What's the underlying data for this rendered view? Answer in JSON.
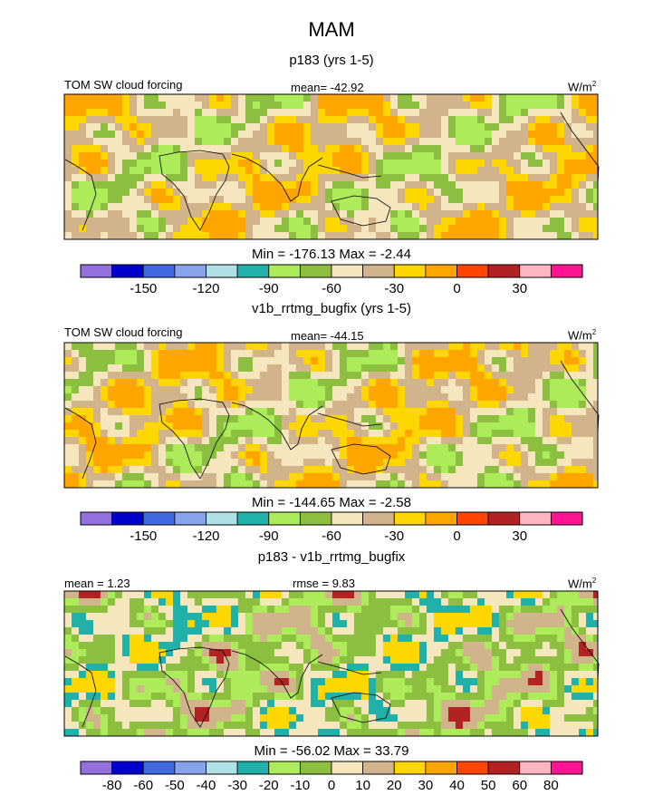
{
  "title": "MAM",
  "chart_data": [
    {
      "type": "heatmap",
      "subtitle": "p183 (yrs 1-5)",
      "left_label": "TOM SW cloud forcing",
      "center_label": "mean= -42.92",
      "units_base": "W/m",
      "units_exp": "2",
      "stats": "Min = -176.13 Max =  -2.44",
      "colorbar_ticks": [
        "-150",
        "-120",
        "-90",
        "-60",
        "-30",
        "0",
        "30"
      ],
      "colorbar_colors": [
        "#9370DB",
        "#0000CD",
        "#4169E1",
        "#87A3EB",
        "#AEE0E6",
        "#20B2AA",
        "#ADEB5A",
        "#8CBF3F",
        "#F5E6BE",
        "#D2B48C",
        "#FFD700",
        "#FFA500",
        "#FF4500",
        "#B22222",
        "#FFB6C1",
        "#FF1493"
      ],
      "xlabel": "",
      "ylabel": ""
    },
    {
      "type": "heatmap",
      "subtitle": "v1b_rrtmg_bugfix (yrs 1-5)",
      "left_label": "TOM SW cloud forcing",
      "center_label": "mean= -44.15",
      "units_base": "W/m",
      "units_exp": "2",
      "stats": "Min = -144.65 Max =  -2.58",
      "colorbar_ticks": [
        "-150",
        "-120",
        "-90",
        "-60",
        "-30",
        "0",
        "30"
      ],
      "colorbar_colors": [
        "#9370DB",
        "#0000CD",
        "#4169E1",
        "#87A3EB",
        "#AEE0E6",
        "#20B2AA",
        "#ADEB5A",
        "#8CBF3F",
        "#F5E6BE",
        "#D2B48C",
        "#FFD700",
        "#FFA500",
        "#FF4500",
        "#B22222",
        "#FFB6C1",
        "#FF1493"
      ],
      "xlabel": "",
      "ylabel": ""
    },
    {
      "type": "heatmap",
      "subtitle": "p183 - v1b_rrtmg_bugfix",
      "left_label": "mean =   1.23",
      "center_label": "rmse =   9.83",
      "units_base": "W/m",
      "units_exp": "2",
      "stats": "Min = -56.02 Max =  33.79",
      "colorbar_ticks": [
        "-80",
        "-60",
        "-50",
        "-40",
        "-30",
        "-20",
        "-10",
        "0",
        "10",
        "20",
        "30",
        "40",
        "50",
        "60",
        "80"
      ],
      "colorbar_colors": [
        "#9370DB",
        "#0000CD",
        "#4169E1",
        "#87A3EB",
        "#AEE0E6",
        "#20B2AA",
        "#ADEB5A",
        "#8CBF3F",
        "#F5E6BE",
        "#D2B48C",
        "#FFD700",
        "#FFA500",
        "#FF4500",
        "#B22222",
        "#FFB6C1",
        "#FF1493"
      ],
      "xlabel": "",
      "ylabel": ""
    }
  ]
}
